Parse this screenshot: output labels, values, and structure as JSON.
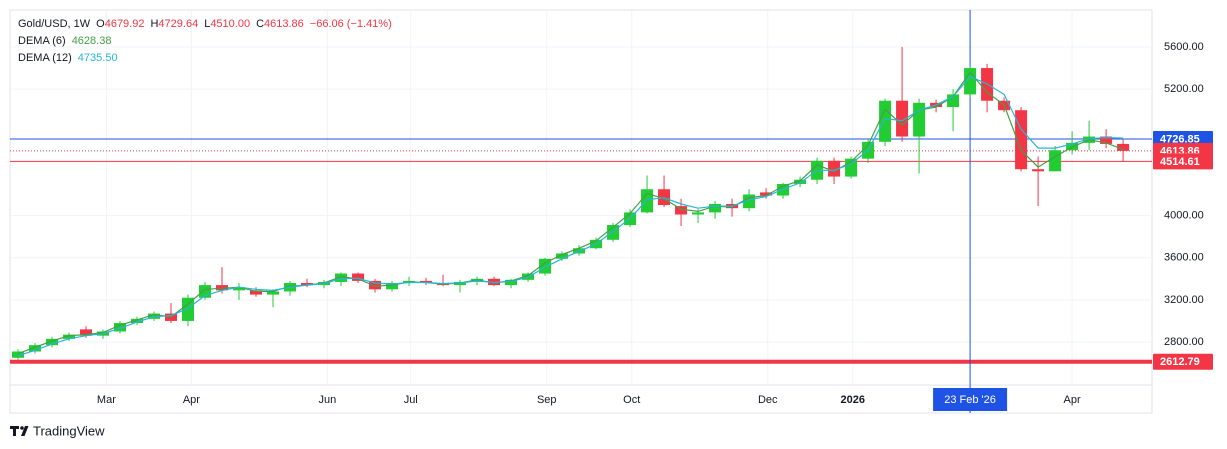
{
  "chart_data": {
    "type": "candlestick",
    "header": {
      "symbol": "Gold/USD, 1W",
      "fields": [
        [
          "O",
          "4679.92"
        ],
        [
          "H",
          "4729.64"
        ],
        [
          "L",
          "4510.00"
        ],
        [
          "C",
          "4613.86"
        ]
      ],
      "change": "−66.06 (−1.41%)"
    },
    "x": [
      0,
      1,
      2,
      3,
      4,
      5,
      6,
      7,
      8,
      9,
      10,
      11,
      12,
      13,
      14,
      15,
      16,
      17,
      18,
      19,
      20,
      21,
      22,
      23,
      24,
      25,
      26,
      27,
      28,
      29,
      30,
      31,
      32,
      33,
      34,
      35,
      36,
      37,
      38,
      39,
      40,
      41,
      42,
      43,
      44,
      45,
      46,
      47,
      48,
      49,
      50,
      51,
      52,
      53,
      54,
      55,
      56,
      57,
      58,
      59,
      60,
      61,
      62,
      63,
      64,
      65
    ],
    "open": [
      2650,
      2710,
      2770,
      2830,
      2920,
      2860,
      2900,
      2980,
      3020,
      3070,
      3000,
      3220,
      3340,
      3290,
      3290,
      3250,
      3280,
      3360,
      3340,
      3370,
      3450,
      3380,
      3300,
      3360,
      3380,
      3360,
      3340,
      3370,
      3400,
      3340,
      3390,
      3450,
      3590,
      3640,
      3690,
      3770,
      3910,
      4030,
      4250,
      4090,
      4010,
      4030,
      4110,
      4070,
      4220,
      4190,
      4300,
      4340,
      4520,
      4370,
      4540,
      4700,
      5090,
      4750,
      5070,
      5030,
      5150,
      5400,
      5090,
      5000,
      4440,
      4420,
      4620,
      4690,
      4750,
      4679.92
    ],
    "high": [
      2730,
      2790,
      2850,
      2890,
      2950,
      2920,
      3000,
      3040,
      3090,
      3170,
      3250,
      3370,
      3510,
      3360,
      3320,
      3300,
      3380,
      3400,
      3390,
      3460,
      3460,
      3400,
      3380,
      3420,
      3410,
      3440,
      3390,
      3420,
      3420,
      3400,
      3460,
      3600,
      3660,
      3720,
      3790,
      3930,
      4060,
      4380,
      4380,
      4160,
      4060,
      4140,
      4160,
      4250,
      4260,
      4310,
      4370,
      4550,
      4550,
      4560,
      4720,
      5110,
      5600,
      5110,
      5100,
      5200,
      5420,
      5440,
      5120,
      5030,
      4560,
      4660,
      4800,
      4900,
      4820,
      4729.64
    ],
    "low": [
      2630,
      2690,
      2750,
      2810,
      2840,
      2830,
      2880,
      2960,
      3000,
      2980,
      2950,
      3200,
      3260,
      3200,
      3230,
      3130,
      3240,
      3320,
      3310,
      3330,
      3360,
      3270,
      3280,
      3330,
      3340,
      3330,
      3270,
      3340,
      3330,
      3310,
      3370,
      3430,
      3570,
      3620,
      3680,
      3750,
      3890,
      4020,
      4080,
      3900,
      3930,
      3970,
      3990,
      4040,
      4160,
      4160,
      4270,
      4300,
      4300,
      4350,
      4500,
      4660,
      4700,
      4400,
      4980,
      4800,
      5120,
      4980,
      4980,
      4420,
      4090,
      4420,
      4580,
      4620,
      4640,
      4510
    ],
    "close": [
      2710,
      2770,
      2830,
      2870,
      2860,
      2900,
      2980,
      3020,
      3070,
      3000,
      3220,
      3340,
      3290,
      3320,
      3250,
      3280,
      3360,
      3340,
      3370,
      3450,
      3380,
      3300,
      3360,
      3380,
      3360,
      3340,
      3370,
      3400,
      3340,
      3390,
      3450,
      3590,
      3640,
      3690,
      3770,
      3910,
      4030,
      4250,
      4100,
      4010,
      4030,
      4110,
      4070,
      4200,
      4190,
      4300,
      4340,
      4520,
      4370,
      4540,
      4700,
      5090,
      4750,
      5070,
      5030,
      5150,
      5400,
      5090,
      5000,
      4440,
      4420,
      4620,
      4690,
      4750,
      4680,
      4613.86
    ],
    "up_color": "#22cc33",
    "down_color": "#f23645",
    "series": [
      {
        "name": "DEMA (6)",
        "color": "#43a047",
        "last_value_label": "4628.38",
        "values": [
          2690,
          2750,
          2810,
          2860,
          2870,
          2890,
          2960,
          3010,
          3060,
          3040,
          3160,
          3300,
          3310,
          3320,
          3280,
          3280,
          3330,
          3340,
          3360,
          3420,
          3400,
          3330,
          3340,
          3370,
          3365,
          3350,
          3360,
          3390,
          3360,
          3380,
          3430,
          3550,
          3630,
          3690,
          3760,
          3890,
          4020,
          4210,
          4160,
          4060,
          4040,
          4090,
          4080,
          4170,
          4190,
          4280,
          4330,
          4480,
          4420,
          4510,
          4670,
          5010,
          4860,
          5000,
          5030,
          5130,
          5360,
          5170,
          5050,
          4620,
          4460,
          4560,
          4650,
          4720,
          4690,
          4628.38
        ]
      },
      {
        "name": "DEMA (12)",
        "color": "#26b5d9",
        "last_value_label": "4735.50",
        "values": [
          2670,
          2720,
          2780,
          2830,
          2860,
          2880,
          2930,
          2990,
          3040,
          3050,
          3120,
          3240,
          3290,
          3320,
          3300,
          3290,
          3320,
          3340,
          3355,
          3400,
          3405,
          3360,
          3350,
          3365,
          3365,
          3355,
          3360,
          3380,
          3365,
          3375,
          3415,
          3510,
          3590,
          3660,
          3730,
          3850,
          3970,
          4150,
          4170,
          4110,
          4070,
          4090,
          4090,
          4150,
          4180,
          4250,
          4310,
          4430,
          4430,
          4490,
          4620,
          4920,
          4900,
          5000,
          5050,
          5130,
          5320,
          5250,
          5150,
          4820,
          4640,
          4640,
          4680,
          4730,
          4740,
          4735.5
        ]
      }
    ],
    "xlim": [
      -0.47,
      66.7
    ],
    "xticks": [
      {
        "value": 5.2,
        "label": "Mar"
      },
      {
        "value": 10.2,
        "label": "Apr"
      },
      {
        "value": 18.2,
        "label": "Jun"
      },
      {
        "value": 23.1,
        "label": "Jul"
      },
      {
        "value": 31.1,
        "label": "Sep"
      },
      {
        "value": 36.1,
        "label": "Oct"
      },
      {
        "value": 44.1,
        "label": "Dec"
      },
      {
        "value": 49.1,
        "label": "2026",
        "bold": true
      },
      {
        "value": 62,
        "label": "Apr"
      }
    ],
    "ylim": [
      2392,
      5951
    ],
    "yticks": [
      {
        "value": 2800,
        "label": "2800.00"
      },
      {
        "value": 3200,
        "label": "3200.00"
      },
      {
        "value": 3600,
        "label": "3600.00"
      },
      {
        "value": 4000,
        "label": "4000.00"
      },
      {
        "value": 5200,
        "label": "5200.00"
      },
      {
        "value": 5600,
        "label": "5600.00"
      }
    ],
    "grid": true,
    "price_lines": [
      {
        "value": 4726.85,
        "color": "#1e53e5",
        "style": "solid",
        "width": 1
      },
      {
        "value": 4613.86,
        "color": "#f23645",
        "style": "dotted",
        "width": 1
      },
      {
        "value": 4514.61,
        "color": "#f23645",
        "style": "solid",
        "width": 1
      },
      {
        "value": 2612.79,
        "color": "#f23645",
        "style": "solid",
        "width": 4
      }
    ],
    "crosshair": {
      "x": 56,
      "label": "23 Feb '26",
      "color": "#1e53e5"
    },
    "brand": "TradingView"
  }
}
